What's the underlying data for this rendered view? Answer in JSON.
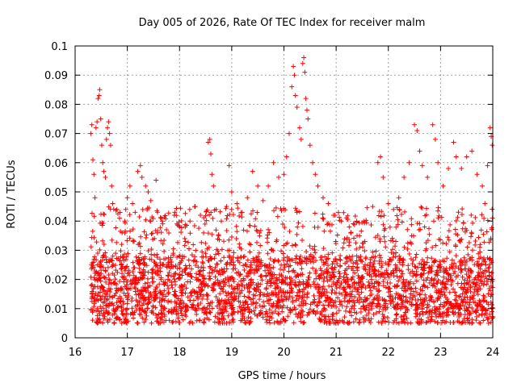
{
  "chart_data": {
    "type": "scatter",
    "title": "Day 005 of 2026, Rate Of TEC Index for receiver malm",
    "xlabel": "GPS time / hours",
    "ylabel": "ROTI / TECUs",
    "xlim": [
      16,
      24
    ],
    "ylim": [
      0,
      0.1
    ],
    "x_ticks": [
      16,
      17,
      18,
      19,
      20,
      21,
      22,
      23,
      24
    ],
    "x_tick_labels": [
      "16",
      "17",
      "18",
      "19",
      "20",
      "21",
      "22",
      "23",
      "24"
    ],
    "y_ticks": [
      0,
      0.01,
      0.02,
      0.03,
      0.04,
      0.05,
      0.06,
      0.07,
      0.08,
      0.09,
      0.1
    ],
    "y_tick_labels": [
      "0",
      "0.01",
      "0.02",
      "0.03",
      "0.04",
      "0.05",
      "0.06",
      "0.07",
      "0.08",
      "0.09",
      "0.1"
    ],
    "grid": true,
    "marker": "+",
    "marker_color": "#ff0000",
    "series": [
      {
        "name": "ROTI",
        "points": [
          [
            16.3,
            0.07
          ],
          [
            16.32,
            0.073
          ],
          [
            16.34,
            0.061
          ],
          [
            16.36,
            0.056
          ],
          [
            16.38,
            0.048
          ],
          [
            16.4,
            0.072
          ],
          [
            16.42,
            0.074
          ],
          [
            16.44,
            0.082
          ],
          [
            16.46,
            0.083
          ],
          [
            16.47,
            0.085
          ],
          [
            16.49,
            0.075
          ],
          [
            16.51,
            0.066
          ],
          [
            16.53,
            0.06
          ],
          [
            16.55,
            0.057
          ],
          [
            16.58,
            0.055
          ],
          [
            16.6,
            0.068
          ],
          [
            16.62,
            0.072
          ],
          [
            16.64,
            0.074
          ],
          [
            16.66,
            0.07
          ],
          [
            16.68,
            0.066
          ],
          [
            16.7,
            0.052
          ],
          [
            16.72,
            0.046
          ],
          [
            16.8,
            0.044
          ],
          [
            16.85,
            0.041
          ],
          [
            16.9,
            0.036
          ],
          [
            16.95,
            0.04
          ],
          [
            17.0,
            0.048
          ],
          [
            17.05,
            0.052
          ],
          [
            17.1,
            0.046
          ],
          [
            17.15,
            0.043
          ],
          [
            17.2,
            0.057
          ],
          [
            17.25,
            0.059
          ],
          [
            17.28,
            0.055
          ],
          [
            17.35,
            0.052
          ],
          [
            17.4,
            0.05
          ],
          [
            17.45,
            0.047
          ],
          [
            17.55,
            0.054
          ],
          [
            17.65,
            0.041
          ],
          [
            17.75,
            0.037
          ],
          [
            17.9,
            0.042
          ],
          [
            18.0,
            0.038
          ],
          [
            18.1,
            0.034
          ],
          [
            18.2,
            0.04
          ],
          [
            18.3,
            0.045
          ],
          [
            18.4,
            0.042
          ],
          [
            18.55,
            0.067
          ],
          [
            18.58,
            0.068
          ],
          [
            18.6,
            0.063
          ],
          [
            18.62,
            0.056
          ],
          [
            18.65,
            0.052
          ],
          [
            18.7,
            0.044
          ],
          [
            18.8,
            0.04
          ],
          [
            18.9,
            0.045
          ],
          [
            18.95,
            0.059
          ],
          [
            19.0,
            0.05
          ],
          [
            19.1,
            0.046
          ],
          [
            19.2,
            0.043
          ],
          [
            19.3,
            0.048
          ],
          [
            19.4,
            0.057
          ],
          [
            19.5,
            0.052
          ],
          [
            19.6,
            0.047
          ],
          [
            19.7,
            0.052
          ],
          [
            19.8,
            0.06
          ],
          [
            19.9,
            0.055
          ],
          [
            20.0,
            0.056
          ],
          [
            20.05,
            0.062
          ],
          [
            20.1,
            0.07
          ],
          [
            20.15,
            0.086
          ],
          [
            20.18,
            0.093
          ],
          [
            20.2,
            0.09
          ],
          [
            20.22,
            0.083
          ],
          [
            20.25,
            0.079
          ],
          [
            20.3,
            0.072
          ],
          [
            20.33,
            0.068
          ],
          [
            20.36,
            0.094
          ],
          [
            20.38,
            0.096
          ],
          [
            20.4,
            0.091
          ],
          [
            20.42,
            0.082
          ],
          [
            20.44,
            0.078
          ],
          [
            20.46,
            0.075
          ],
          [
            20.5,
            0.066
          ],
          [
            20.55,
            0.06
          ],
          [
            20.6,
            0.056
          ],
          [
            20.65,
            0.052
          ],
          [
            20.75,
            0.048
          ],
          [
            20.85,
            0.046
          ],
          [
            20.95,
            0.042
          ],
          [
            21.1,
            0.04
          ],
          [
            21.25,
            0.038
          ],
          [
            21.4,
            0.035
          ],
          [
            21.55,
            0.033
          ],
          [
            21.7,
            0.045
          ],
          [
            21.8,
            0.06
          ],
          [
            21.85,
            0.062
          ],
          [
            21.9,
            0.055
          ],
          [
            22.0,
            0.046
          ],
          [
            22.1,
            0.044
          ],
          [
            22.2,
            0.048
          ],
          [
            22.3,
            0.055
          ],
          [
            22.4,
            0.06
          ],
          [
            22.5,
            0.073
          ],
          [
            22.55,
            0.071
          ],
          [
            22.6,
            0.064
          ],
          [
            22.65,
            0.059
          ],
          [
            22.75,
            0.055
          ],
          [
            22.85,
            0.073
          ],
          [
            22.9,
            0.068
          ],
          [
            22.95,
            0.06
          ],
          [
            23.05,
            0.052
          ],
          [
            23.15,
            0.058
          ],
          [
            23.25,
            0.067
          ],
          [
            23.3,
            0.062
          ],
          [
            23.4,
            0.058
          ],
          [
            23.5,
            0.062
          ],
          [
            23.6,
            0.064
          ],
          [
            23.7,
            0.056
          ],
          [
            23.8,
            0.052
          ],
          [
            23.85,
            0.046
          ],
          [
            23.9,
            0.059
          ],
          [
            23.95,
            0.072
          ],
          [
            23.97,
            0.069
          ],
          [
            23.99,
            0.066
          ]
        ]
      }
    ],
    "background_band": {
      "x_start": 16.3,
      "x_end": 24,
      "y_low": 0.005,
      "y_high": 0.045,
      "y_center": 0.018,
      "point_count": 3000
    }
  }
}
